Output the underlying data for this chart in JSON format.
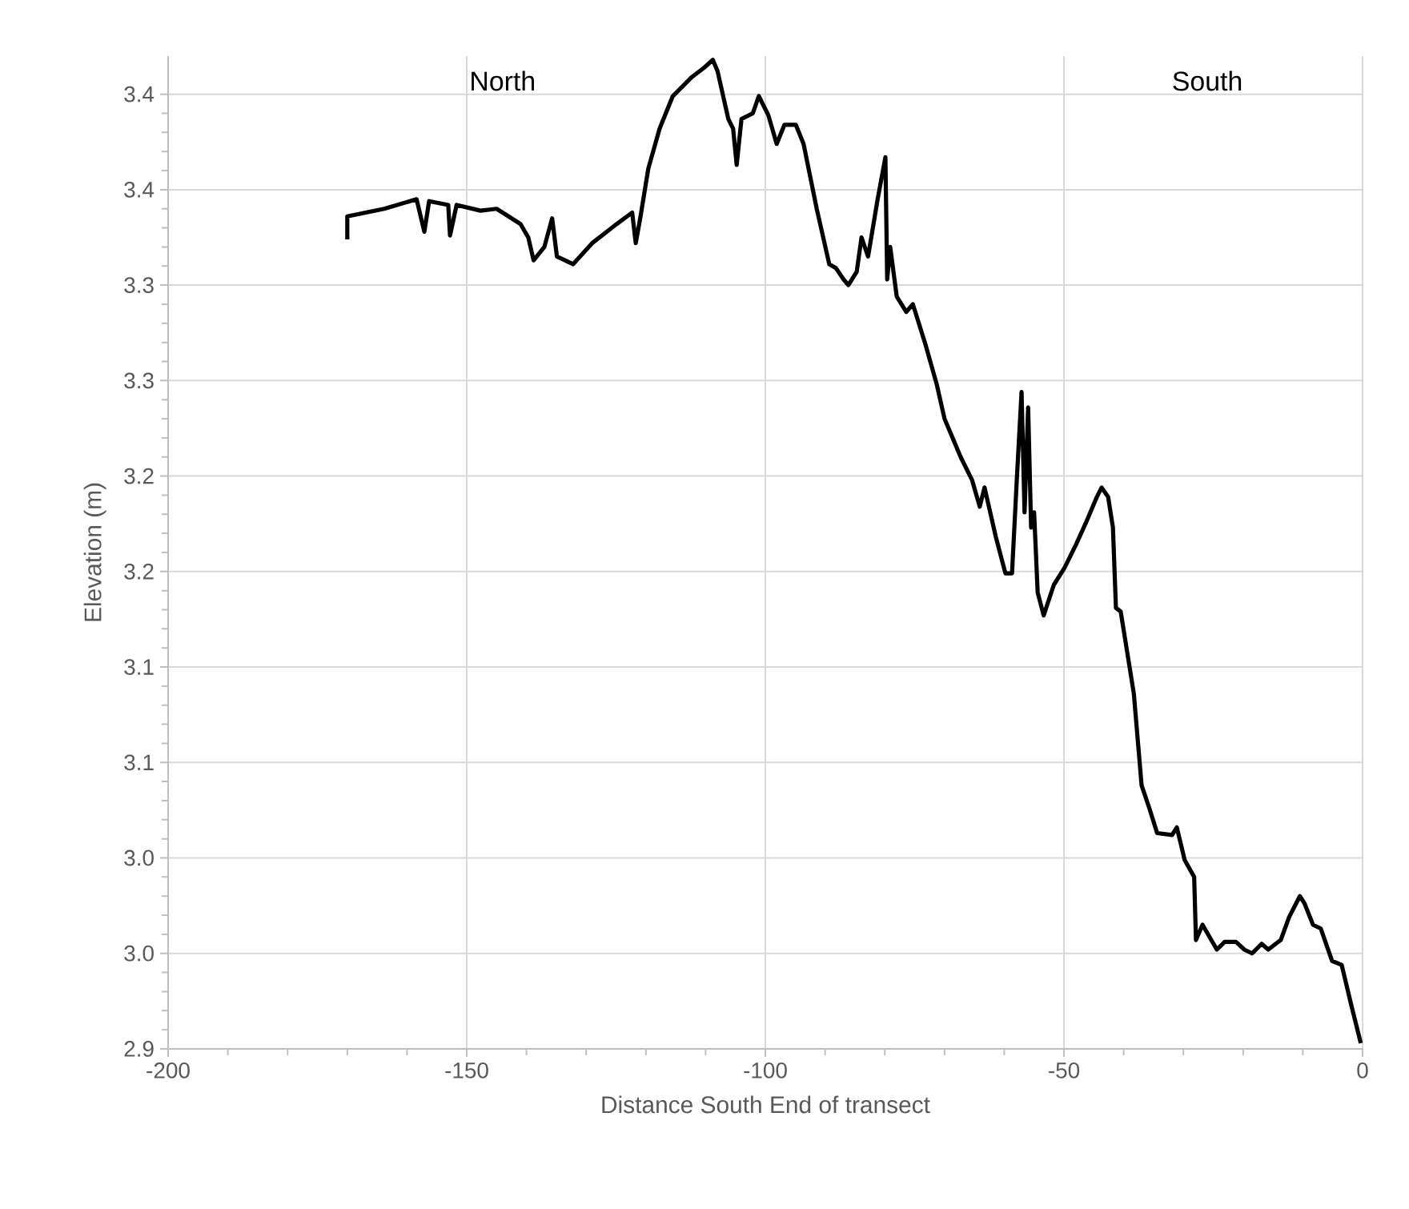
{
  "chart_data": {
    "type": "line",
    "xlabel": "Distance South End of transect",
    "ylabel": "Elevation (m)",
    "annotations": [
      "North",
      "South"
    ],
    "xlim": [
      -200,
      0
    ],
    "ylim": [
      2.9,
      3.42
    ],
    "xticks": [
      -200,
      -150,
      -100,
      -50,
      0
    ],
    "yticks": [
      {
        "value": 2.9,
        "label": "2.9"
      },
      {
        "value": 2.95,
        "label": "3.0"
      },
      {
        "value": 3.0,
        "label": "3.0"
      },
      {
        "value": 3.05,
        "label": "3.1"
      },
      {
        "value": 3.1,
        "label": "3.1"
      },
      {
        "value": 3.15,
        "label": "3.2"
      },
      {
        "value": 3.2,
        "label": "3.2"
      },
      {
        "value": 3.25,
        "label": "3.3"
      },
      {
        "value": 3.3,
        "label": "3.3"
      },
      {
        "value": 3.35,
        "label": "3.4"
      },
      {
        "value": 3.4,
        "label": "3.4"
      }
    ],
    "grid": true,
    "marker": "none",
    "line_style": "solid",
    "color": "#000000",
    "x": [
      -170.0,
      -170.0,
      -163.8,
      -158.4,
      -157.1,
      -156.3,
      -153.1,
      -152.8,
      -151.7,
      -147.7,
      -145.0,
      -141.0,
      -139.7,
      -138.8,
      -137.0,
      -135.7,
      -134.9,
      -132.2,
      -129.0,
      -124.9,
      -122.3,
      -121.7,
      -120.9,
      -119.6,
      -117.7,
      -115.5,
      -112.3,
      -110.2,
      -108.8,
      -108.0,
      -106.2,
      -105.4,
      -104.8,
      -104.0,
      -102.1,
      -101.1,
      -99.5,
      -98.1,
      -96.8,
      -94.9,
      -93.6,
      -91.4,
      -89.3,
      -88.2,
      -86.9,
      -86.1,
      -84.7,
      -83.9,
      -82.8,
      -81.2,
      -79.9,
      -79.6,
      -79.1,
      -78.0,
      -76.4,
      -75.3,
      -73.2,
      -71.3,
      -70.0,
      -67.3,
      -65.4,
      -64.1,
      -63.3,
      -61.4,
      -59.8,
      -58.7,
      -57.9,
      -57.1,
      -56.6,
      -56.0,
      -55.5,
      -55.0,
      -54.4,
      -53.4,
      -51.7,
      -49.9,
      -48.0,
      -46.4,
      -44.5,
      -43.7,
      -42.6,
      -41.8,
      -41.3,
      -40.5,
      -38.3,
      -37.0,
      -35.7,
      -34.4,
      -31.9,
      -31.1,
      -29.8,
      -28.2,
      -27.9,
      -26.8,
      -25.7,
      -24.4,
      -23.1,
      -21.2,
      -19.8,
      -18.5,
      -16.9,
      -15.8,
      -13.7,
      -12.3,
      -10.5,
      -9.7,
      -8.3,
      -7.0,
      -5.1,
      -3.5,
      -1.9,
      -0.3
    ],
    "values": [
      3.324,
      3.336,
      3.34,
      3.345,
      3.328,
      3.344,
      3.342,
      3.326,
      3.342,
      3.339,
      3.34,
      3.332,
      3.325,
      3.313,
      3.32,
      3.335,
      3.315,
      3.311,
      3.322,
      3.332,
      3.338,
      3.322,
      3.336,
      3.361,
      3.382,
      3.399,
      3.409,
      3.414,
      3.418,
      3.412,
      3.387,
      3.382,
      3.363,
      3.387,
      3.39,
      3.399,
      3.389,
      3.374,
      3.384,
      3.384,
      3.374,
      3.34,
      3.311,
      3.309,
      3.303,
      3.3,
      3.307,
      3.325,
      3.315,
      3.345,
      3.367,
      3.303,
      3.32,
      3.294,
      3.286,
      3.29,
      3.269,
      3.248,
      3.23,
      3.21,
      3.198,
      3.184,
      3.194,
      3.168,
      3.149,
      3.149,
      3.198,
      3.244,
      3.181,
      3.236,
      3.173,
      3.181,
      3.139,
      3.127,
      3.143,
      3.152,
      3.164,
      3.175,
      3.189,
      3.194,
      3.189,
      3.173,
      3.131,
      3.129,
      3.086,
      3.038,
      3.026,
      3.013,
      3.012,
      3.016,
      2.999,
      2.99,
      2.957,
      2.965,
      2.959,
      2.952,
      2.956,
      2.956,
      2.952,
      2.95,
      2.955,
      2.952,
      2.957,
      2.969,
      2.98,
      2.976,
      2.965,
      2.963,
      2.946,
      2.944,
      2.923,
      2.903
    ]
  }
}
